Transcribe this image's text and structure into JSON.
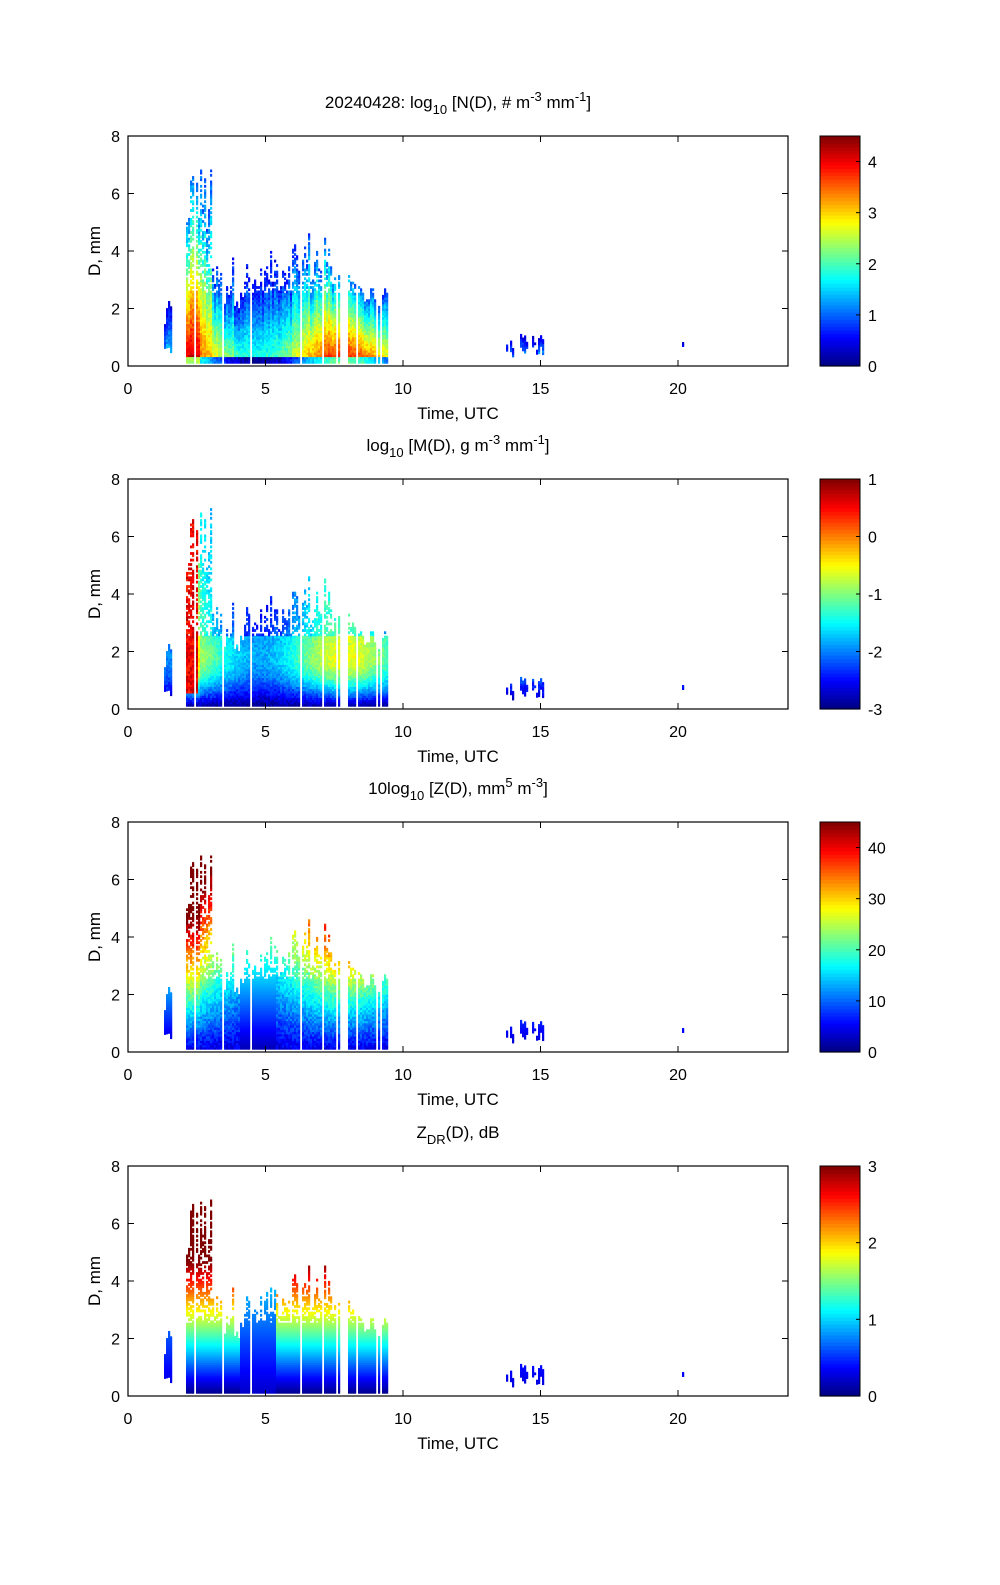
{
  "chart_data": [
    {
      "type": "heatmap",
      "title_parts": {
        "pre": "20240428: log",
        "sub": "10",
        "mid": " [N(D), # m",
        "sup1": "-3",
        "mid2": " mm",
        "sup2": "-1",
        "post": "]"
      },
      "xlabel": "Time, UTC",
      "ylabel": "D, mm",
      "xlim": [
        0,
        24
      ],
      "ylim": [
        0,
        8
      ],
      "xticks": [
        "0",
        "5",
        "10",
        "15",
        "20"
      ],
      "xtick_values": [
        0,
        5,
        10,
        15,
        20
      ],
      "yticks": [
        "0",
        "2",
        "4",
        "6",
        "8"
      ],
      "ytick_values": [
        0,
        2,
        4,
        6,
        8
      ],
      "colorbar": {
        "range": [
          0,
          4.5
        ],
        "ticks": [
          "0",
          "1",
          "2",
          "3",
          "4"
        ],
        "tick_values": [
          0,
          1,
          2,
          3,
          4
        ]
      },
      "field": "N",
      "colormap": "jet"
    },
    {
      "type": "heatmap",
      "title_parts": {
        "pre": "log",
        "sub": "10",
        "mid": " [M(D), g m",
        "sup1": "-3",
        "mid2": " mm",
        "sup2": "-1",
        "post": "]"
      },
      "xlabel": "Time, UTC",
      "ylabel": "D, mm",
      "xlim": [
        0,
        24
      ],
      "ylim": [
        0,
        8
      ],
      "xticks": [
        "0",
        "5",
        "10",
        "15",
        "20"
      ],
      "xtick_values": [
        0,
        5,
        10,
        15,
        20
      ],
      "yticks": [
        "0",
        "2",
        "4",
        "6",
        "8"
      ],
      "ytick_values": [
        0,
        2,
        4,
        6,
        8
      ],
      "colorbar": {
        "range": [
          -3,
          1
        ],
        "ticks": [
          "-3",
          "-2",
          "-1",
          "0",
          "1"
        ],
        "tick_values": [
          -3,
          -2,
          -1,
          0,
          1
        ]
      },
      "field": "M",
      "colormap": "jet"
    },
    {
      "type": "heatmap",
      "title_parts": {
        "pre": "10log",
        "sub": "10",
        "mid": " [Z(D),  mm",
        "sup1": "5",
        "mid2": " m",
        "sup2": "-3",
        "post": "]"
      },
      "xlabel": "Time, UTC",
      "ylabel": "D, mm",
      "xlim": [
        0,
        24
      ],
      "ylim": [
        0,
        8
      ],
      "xticks": [
        "0",
        "5",
        "10",
        "15",
        "20"
      ],
      "xtick_values": [
        0,
        5,
        10,
        15,
        20
      ],
      "yticks": [
        "0",
        "2",
        "4",
        "6",
        "8"
      ],
      "ytick_values": [
        0,
        2,
        4,
        6,
        8
      ],
      "colorbar": {
        "range": [
          0,
          45
        ],
        "ticks": [
          "0",
          "10",
          "20",
          "30",
          "40"
        ],
        "tick_values": [
          0,
          10,
          20,
          30,
          40
        ]
      },
      "field": "Z",
      "colormap": "jet"
    },
    {
      "type": "heatmap",
      "title_parts": {
        "pre": "Z",
        "sub": "DR",
        "mid": "(D), dB",
        "sup1": "",
        "mid2": "",
        "sup2": "",
        "post": ""
      },
      "xlabel": "Time, UTC",
      "ylabel": "D, mm",
      "xlim": [
        0,
        24
      ],
      "ylim": [
        0,
        8
      ],
      "xticks": [
        "0",
        "5",
        "10",
        "15",
        "20"
      ],
      "xtick_values": [
        0,
        5,
        10,
        15,
        20
      ],
      "yticks": [
        "0",
        "2",
        "4",
        "6",
        "8"
      ],
      "ytick_values": [
        0,
        2,
        4,
        6,
        8
      ],
      "colorbar": {
        "range": [
          0,
          3
        ],
        "ticks": [
          "0",
          "1",
          "2",
          "3"
        ],
        "tick_values": [
          0,
          1,
          2,
          3
        ]
      },
      "field": "ZDR",
      "colormap": "jet"
    }
  ],
  "precip_periods_utc": [
    {
      "start": 1.3,
      "end": 1.6,
      "dmax": 2.4
    },
    {
      "start": 2.1,
      "end": 9.4,
      "dmax": 7.1
    },
    {
      "start": 13.7,
      "end": 15.1,
      "dmax": 1.1
    },
    {
      "start": 20.1,
      "end": 20.2,
      "dmax": 0.9
    }
  ]
}
